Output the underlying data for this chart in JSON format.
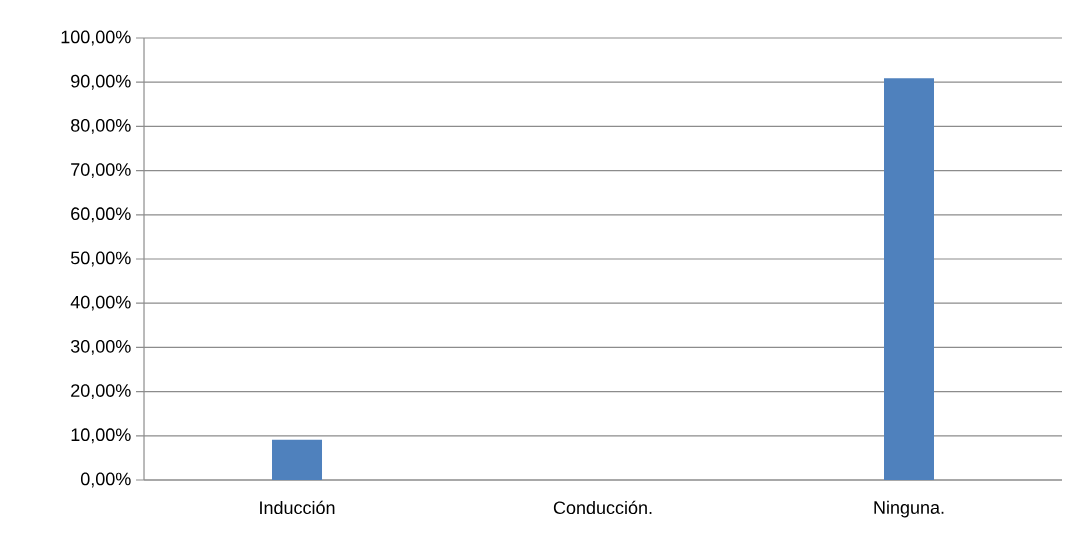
{
  "chart_data": {
    "type": "bar",
    "categories": [
      "Inducción",
      "Conducción.",
      "Ninguna."
    ],
    "values": [
      9.1,
      0,
      90.9
    ],
    "color": "#4f81bd",
    "ylim": [
      0,
      100
    ],
    "yticks": [
      {
        "value": 0,
        "label": "0,00%"
      },
      {
        "value": 10,
        "label": "10,00%"
      },
      {
        "value": 20,
        "label": "20,00%"
      },
      {
        "value": 30,
        "label": "30,00%"
      },
      {
        "value": 40,
        "label": "40,00%"
      },
      {
        "value": 50,
        "label": "50,00%"
      },
      {
        "value": 60,
        "label": "60,00%"
      },
      {
        "value": 70,
        "label": "70,00%"
      },
      {
        "value": 80,
        "label": "80,00%"
      },
      {
        "value": 90,
        "label": "90,00%"
      },
      {
        "value": 100,
        "label": "100,00%"
      }
    ],
    "grid": "y"
  }
}
